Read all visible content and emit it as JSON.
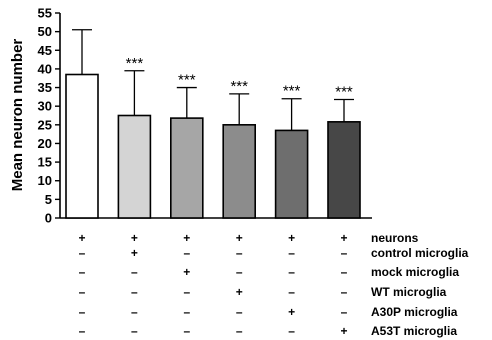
{
  "chart_data": {
    "type": "bar",
    "ylabel": "Mean neuron number",
    "ylim": [
      0,
      55
    ],
    "yticks": [
      0,
      5,
      10,
      15,
      20,
      25,
      30,
      35,
      40,
      45,
      50,
      55
    ],
    "grid": false,
    "legend": "none",
    "series": [
      {
        "values": [
          38.5,
          27.5,
          26.8,
          25.0,
          23.5,
          25.8
        ],
        "errors": [
          12.0,
          12.0,
          8.2,
          8.3,
          8.5,
          6.0
        ],
        "significance": [
          "",
          "***",
          "***",
          "***",
          "***",
          "***"
        ],
        "colors": [
          "#ffffff",
          "#d4d4d4",
          "#a6a6a6",
          "#8c8c8c",
          "#6e6e6e",
          "#474747"
        ]
      }
    ],
    "conditions": {
      "labels": [
        "neurons",
        "control microglia",
        "mock microglia",
        "WT microglia",
        "A30P microglia",
        "A53T microglia"
      ],
      "rows": [
        [
          "+",
          "+",
          "+",
          "+",
          "+",
          "+"
        ],
        [
          "–",
          "+",
          "–",
          "–",
          "–",
          "–"
        ],
        [
          "–",
          "–",
          "+",
          "–",
          "–",
          "–"
        ],
        [
          "–",
          "–",
          "–",
          "+",
          "–",
          "–"
        ],
        [
          "–",
          "–",
          "–",
          "–",
          "+",
          "–"
        ],
        [
          "–",
          "–",
          "–",
          "–",
          "–",
          "+"
        ]
      ]
    }
  }
}
